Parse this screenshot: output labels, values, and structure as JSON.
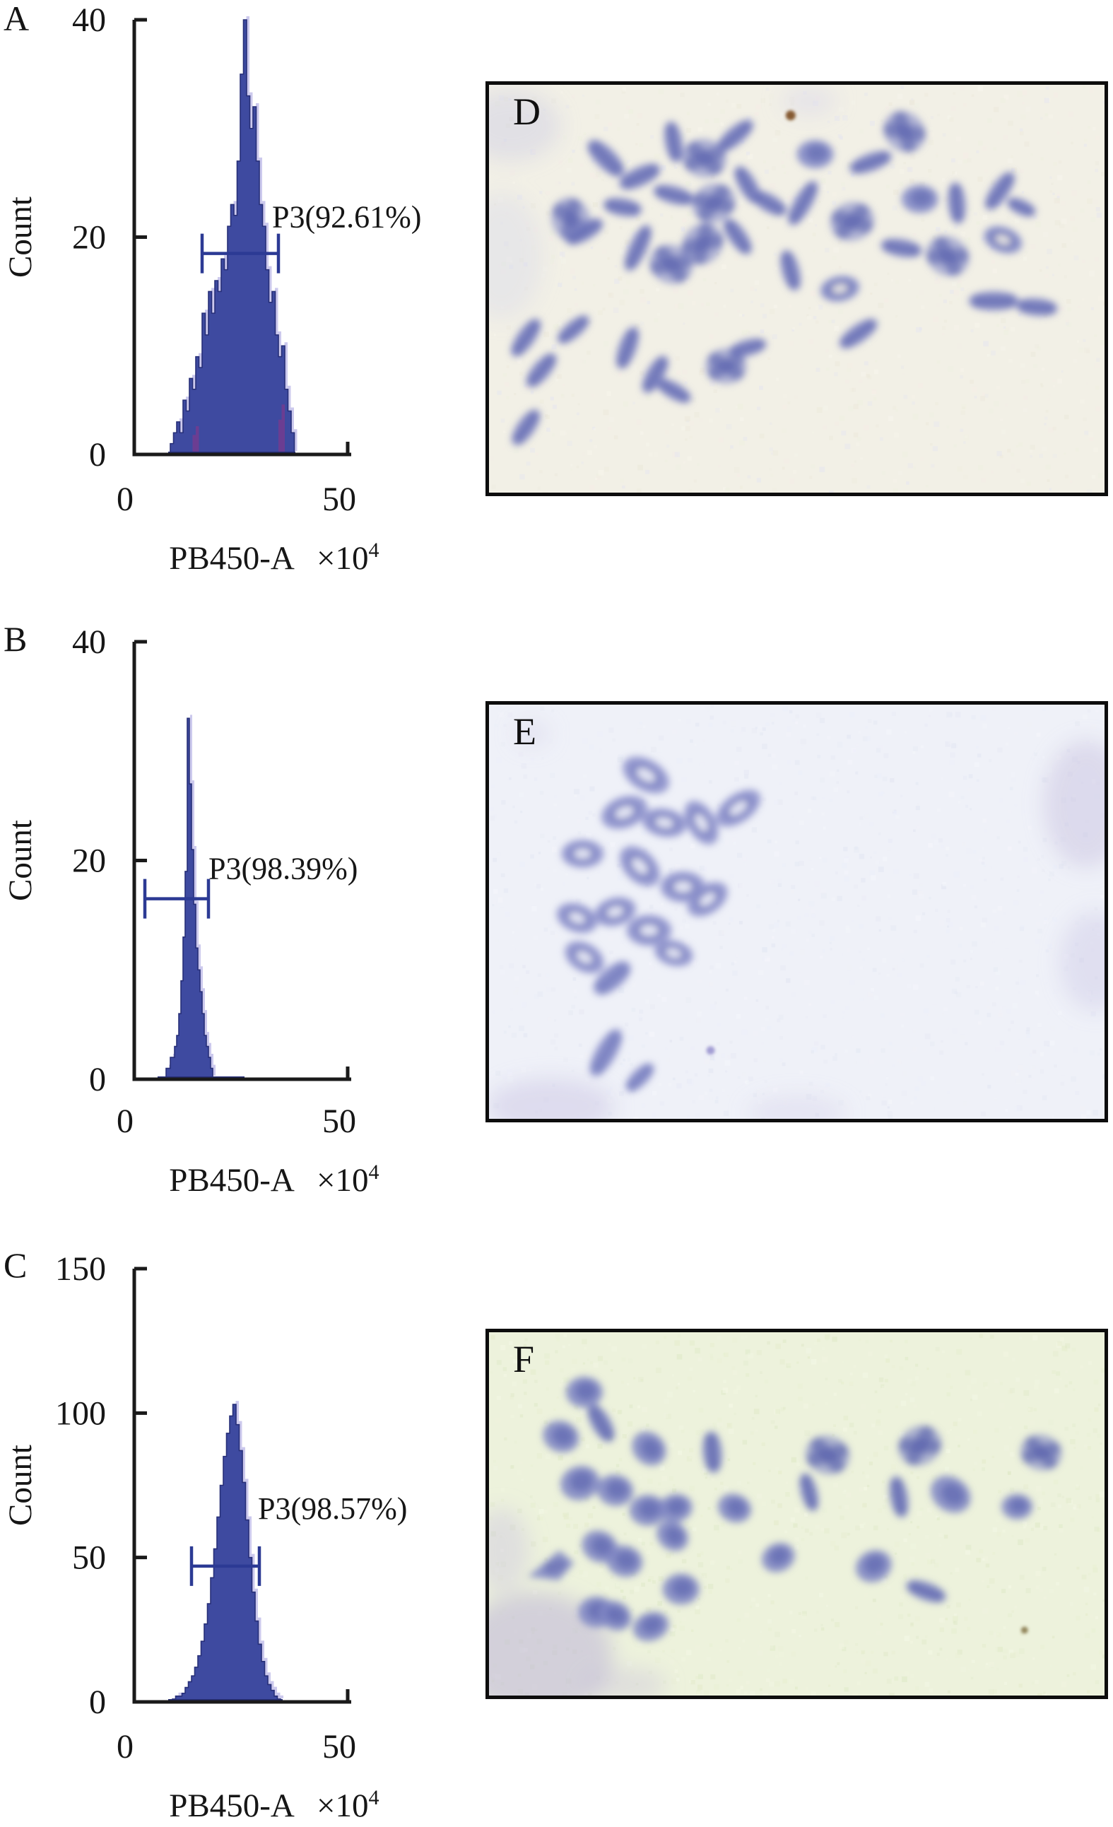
{
  "figure": {
    "background": "#ffffff"
  },
  "style": {
    "bar_fill": "#3e4aa0",
    "bar_edge": "#272f78",
    "halo": "#c9c6ec",
    "purple": "#6b3d92",
    "gate_color": "#2c3a94",
    "axis_color": "#1a1a1a",
    "text_color": "#161616"
  },
  "chart_data": [
    {
      "id": "A",
      "type": "bar",
      "panel_label": "A",
      "ylabel": "Count",
      "xlabel": "PB450-A",
      "xunit": "×10",
      "xunit_sup": "4",
      "ylim": [
        0,
        40
      ],
      "yticks": [
        40,
        20,
        0
      ],
      "xlim": [
        0,
        50
      ],
      "xticks": [
        0,
        50
      ],
      "grid": false,
      "bin_width": 0.75,
      "bins": [
        [
          8.5,
          1
        ],
        [
          9.25,
          2
        ],
        [
          10,
          3
        ],
        [
          10.75,
          2
        ],
        [
          11.5,
          5
        ],
        [
          12.25,
          4
        ],
        [
          13,
          7
        ],
        [
          13.75,
          6
        ],
        [
          14.5,
          9
        ],
        [
          15.25,
          8
        ],
        [
          16,
          13
        ],
        [
          16.75,
          11
        ],
        [
          17.5,
          15
        ],
        [
          18.25,
          13
        ],
        [
          19,
          16
        ],
        [
          19.75,
          15
        ],
        [
          20.5,
          18
        ],
        [
          21.25,
          17
        ],
        [
          22,
          21
        ],
        [
          22.75,
          23
        ],
        [
          23.5,
          22
        ],
        [
          24.25,
          27
        ],
        [
          25,
          35
        ],
        [
          25.75,
          40
        ],
        [
          26.5,
          33
        ],
        [
          27.25,
          30
        ],
        [
          28,
          32
        ],
        [
          28.75,
          27
        ],
        [
          29.5,
          23
        ],
        [
          30.25,
          21
        ],
        [
          31,
          17
        ],
        [
          31.75,
          14
        ],
        [
          32.5,
          15
        ],
        [
          33.25,
          11
        ],
        [
          34,
          9
        ],
        [
          34.75,
          10
        ],
        [
          35.5,
          6
        ],
        [
          36.25,
          4
        ],
        [
          37,
          2
        ]
      ],
      "purple_bins": [
        [
          13.75,
          1.8
        ],
        [
          14.5,
          2.6
        ],
        [
          34,
          3.2
        ],
        [
          34.75,
          4.6
        ]
      ],
      "baseline": [
        8,
        38
      ],
      "gate": {
        "label": "P3(92.61%)",
        "level": 18.5,
        "from": 16,
        "to": 34,
        "label_offset": [
          -9,
          -37
        ]
      }
    },
    {
      "id": "B",
      "type": "bar",
      "panel_label": "B",
      "ylabel": "Count",
      "xlabel": "PB450-A",
      "xunit": "×10",
      "xunit_sup": "4",
      "ylim": [
        0,
        40
      ],
      "yticks": [
        40,
        20,
        0
      ],
      "xlim": [
        0,
        50
      ],
      "xticks": [
        0,
        50
      ],
      "grid": false,
      "bin_width": 0.5,
      "bins": [
        [
          7.5,
          1
        ],
        [
          8,
          1
        ],
        [
          8.5,
          2
        ],
        [
          9,
          2
        ],
        [
          9.5,
          3
        ],
        [
          10,
          4
        ],
        [
          10.5,
          6
        ],
        [
          11,
          9
        ],
        [
          11.5,
          13
        ],
        [
          12,
          19
        ],
        [
          12.5,
          33
        ],
        [
          13,
          27
        ],
        [
          13.5,
          21
        ],
        [
          14,
          16
        ],
        [
          14.5,
          12
        ],
        [
          15,
          10
        ],
        [
          15.5,
          8
        ],
        [
          16,
          6
        ],
        [
          16.5,
          4
        ],
        [
          17,
          3
        ],
        [
          17.5,
          2
        ],
        [
          18,
          1
        ]
      ],
      "purple_bins": [],
      "baseline": [
        5.5,
        26
      ],
      "gate": {
        "label": "P3(98.39%)",
        "level": 16.5,
        "from": 2.5,
        "to": 17.5,
        "label_offset": [
          0,
          -28
        ]
      }
    },
    {
      "id": "C",
      "type": "bar",
      "panel_label": "C",
      "ylabel": "Count",
      "xlabel": "PB450-A",
      "xunit": "×10",
      "xunit_sup": "4",
      "ylim": [
        0,
        150
      ],
      "yticks": [
        150,
        100,
        50,
        0
      ],
      "xlim": [
        0,
        50
      ],
      "xticks": [
        0,
        50
      ],
      "grid": false,
      "bin_width": 0.75,
      "bins": [
        [
          9,
          1
        ],
        [
          9.75,
          2
        ],
        [
          10.5,
          2
        ],
        [
          11.25,
          3
        ],
        [
          12,
          5
        ],
        [
          12.75,
          7
        ],
        [
          13.5,
          9
        ],
        [
          14.25,
          12
        ],
        [
          15,
          16
        ],
        [
          15.75,
          21
        ],
        [
          16.5,
          27
        ],
        [
          17.25,
          34
        ],
        [
          18,
          43
        ],
        [
          18.75,
          53
        ],
        [
          19.5,
          64
        ],
        [
          20.25,
          75
        ],
        [
          21,
          85
        ],
        [
          21.75,
          93
        ],
        [
          22.5,
          99
        ],
        [
          23.25,
          103
        ],
        [
          24,
          96
        ],
        [
          24.75,
          87
        ],
        [
          25.5,
          76
        ],
        [
          26.25,
          63
        ],
        [
          27,
          50
        ],
        [
          27.75,
          38
        ],
        [
          28.5,
          28
        ],
        [
          29.25,
          20
        ],
        [
          30,
          14
        ],
        [
          30.75,
          9
        ],
        [
          31.5,
          6
        ],
        [
          32.25,
          4
        ],
        [
          33,
          2
        ],
        [
          33.75,
          1
        ]
      ],
      "purple_bins": [],
      "baseline": [
        8,
        35
      ],
      "gate": {
        "label": "P3(98.57%)",
        "level": 47,
        "from": 13.5,
        "to": 29.5,
        "label_offset": [
          -2,
          -67
        ]
      }
    }
  ],
  "images": {
    "D": {
      "label": "D",
      "bg": "#f2f0e6",
      "noise": [
        "#ece9db",
        "#f7f5ec",
        "#e6e6ef",
        "#eef0e0",
        "#f5ece6"
      ],
      "chromo_outer": "#8289c6",
      "chromo_inner": "#5a63ae",
      "smudges": [
        [
          0.035,
          0.1,
          70,
          50,
          "#c7c9e4",
          0.4
        ],
        [
          0.02,
          0.42,
          60,
          90,
          "#d4d6ea",
          0.35
        ],
        [
          0.52,
          0.04,
          40,
          22,
          "#d8d4ec",
          0.4
        ]
      ],
      "specks": [
        [
          0.49,
          0.075,
          7,
          "#7a4a20"
        ]
      ],
      "blobs": [
        [
          0.19,
          0.18,
          34,
          15,
          45,
          "rod"
        ],
        [
          0.245,
          0.225,
          32,
          14,
          -25,
          "rod"
        ],
        [
          0.3,
          0.14,
          30,
          13,
          80,
          "rod"
        ],
        [
          0.35,
          0.18,
          30,
          26,
          10,
          "x"
        ],
        [
          0.4,
          0.125,
          32,
          13,
          -40,
          "rod"
        ],
        [
          0.3,
          0.27,
          30,
          13,
          15,
          "rod"
        ],
        [
          0.365,
          0.29,
          30,
          26,
          -20,
          "x"
        ],
        [
          0.42,
          0.245,
          30,
          13,
          60,
          "rod"
        ],
        [
          0.455,
          0.29,
          28,
          13,
          30,
          "rod"
        ],
        [
          0.53,
          0.17,
          26,
          20,
          0,
          "blob"
        ],
        [
          0.62,
          0.19,
          32,
          13,
          -20,
          "rod"
        ],
        [
          0.675,
          0.115,
          30,
          26,
          40,
          "x"
        ],
        [
          0.7,
          0.28,
          26,
          20,
          0,
          "blob"
        ],
        [
          0.76,
          0.29,
          30,
          13,
          85,
          "rod"
        ],
        [
          0.83,
          0.26,
          32,
          13,
          -55,
          "rod"
        ],
        [
          0.865,
          0.3,
          22,
          11,
          25,
          "rod"
        ],
        [
          0.51,
          0.29,
          36,
          13,
          -60,
          "rod"
        ],
        [
          0.59,
          0.335,
          30,
          26,
          -15,
          "x"
        ],
        [
          0.67,
          0.4,
          30,
          13,
          10,
          "rod"
        ],
        [
          0.745,
          0.42,
          30,
          26,
          30,
          "x"
        ],
        [
          0.835,
          0.38,
          28,
          18,
          20,
          "ring"
        ],
        [
          0.49,
          0.455,
          30,
          13,
          75,
          "rod"
        ],
        [
          0.57,
          0.5,
          28,
          18,
          -10,
          "ring"
        ],
        [
          0.6,
          0.61,
          32,
          13,
          -35,
          "rod"
        ],
        [
          0.82,
          0.53,
          36,
          14,
          0,
          "rod"
        ],
        [
          0.89,
          0.545,
          30,
          13,
          5,
          "rod"
        ],
        [
          0.133,
          0.33,
          30,
          26,
          70,
          "x"
        ],
        [
          0.155,
          0.36,
          30,
          13,
          -30,
          "rod"
        ],
        [
          0.217,
          0.3,
          28,
          13,
          10,
          "rod"
        ],
        [
          0.242,
          0.4,
          36,
          13,
          -65,
          "rod"
        ],
        [
          0.296,
          0.44,
          30,
          26,
          20,
          "x"
        ],
        [
          0.347,
          0.39,
          30,
          26,
          -45,
          "x"
        ],
        [
          0.404,
          0.372,
          30,
          13,
          55,
          "rod"
        ],
        [
          0.06,
          0.62,
          32,
          13,
          -55,
          "rod"
        ],
        [
          0.085,
          0.7,
          30,
          13,
          -50,
          "rod"
        ],
        [
          0.06,
          0.84,
          30,
          13,
          -55,
          "rod"
        ],
        [
          0.137,
          0.6,
          28,
          12,
          -40,
          "rod"
        ],
        [
          0.225,
          0.645,
          32,
          13,
          -70,
          "rod"
        ],
        [
          0.27,
          0.71,
          30,
          13,
          -60,
          "rod"
        ],
        [
          0.3,
          0.75,
          28,
          12,
          30,
          "rod"
        ],
        [
          0.385,
          0.69,
          28,
          24,
          0,
          "x"
        ],
        [
          0.42,
          0.645,
          28,
          12,
          -15,
          "rod"
        ]
      ]
    },
    "E": {
      "label": "E",
      "bg": "#eff1f8",
      "noise": [
        "#e7eaf4",
        "#f5f6fb",
        "#e2e6f2",
        "#eceffa",
        "#f0f1f7"
      ],
      "chromo_outer": "#8d92cc",
      "chromo_inner": "#6a71b8",
      "smudges": [
        [
          0.97,
          0.24,
          60,
          90,
          "#c9c4e2",
          0.5
        ],
        [
          0.985,
          0.62,
          50,
          70,
          "#cfcae6",
          0.45
        ],
        [
          0.1,
          0.97,
          90,
          40,
          "#cdc8e5",
          0.5
        ],
        [
          0.5,
          0.985,
          70,
          25,
          "#d6d2ea",
          0.4
        ],
        [
          0.07,
          0.07,
          25,
          18,
          "#d8d4ec",
          0.45
        ]
      ],
      "specks": [
        [
          0.36,
          0.835,
          6,
          "#9a93cf"
        ]
      ],
      "blobs": [
        [
          0.255,
          0.17,
          36,
          22,
          30,
          "ring"
        ],
        [
          0.22,
          0.26,
          34,
          22,
          -20,
          "ring"
        ],
        [
          0.285,
          0.285,
          32,
          20,
          10,
          "ring"
        ],
        [
          0.345,
          0.285,
          34,
          20,
          60,
          "ring"
        ],
        [
          0.405,
          0.25,
          36,
          20,
          -35,
          "ring"
        ],
        [
          0.152,
          0.36,
          30,
          20,
          0,
          "ring"
        ],
        [
          0.245,
          0.39,
          34,
          22,
          45,
          "ring"
        ],
        [
          0.315,
          0.44,
          32,
          22,
          0,
          "ring"
        ],
        [
          0.355,
          0.47,
          32,
          20,
          -35,
          "ring"
        ],
        [
          0.143,
          0.515,
          30,
          20,
          20,
          "ring"
        ],
        [
          0.205,
          0.5,
          30,
          20,
          -15,
          "ring"
        ],
        [
          0.26,
          0.545,
          32,
          22,
          0,
          "ring"
        ],
        [
          0.155,
          0.61,
          30,
          20,
          30,
          "ring"
        ],
        [
          0.2,
          0.66,
          32,
          16,
          -40,
          "rod"
        ],
        [
          0.3,
          0.6,
          28,
          18,
          15,
          "ring"
        ],
        [
          0.19,
          0.84,
          38,
          15,
          -60,
          "rod"
        ],
        [
          0.245,
          0.9,
          26,
          12,
          -45,
          "rod"
        ]
      ]
    },
    "F": {
      "label": "F",
      "bg": "#edf2dc",
      "noise": [
        "#e4eccb",
        "#f4f8e6",
        "#dfe9c8",
        "#f0f4e0",
        "#e9f0d4"
      ],
      "chromo_outer": "#7f86c4",
      "chromo_inner": "#575fab",
      "smudges": [
        [
          0.075,
          0.89,
          110,
          90,
          "#b9b0d8",
          0.5
        ],
        [
          0.02,
          0.6,
          40,
          60,
          "#cac2e0",
          0.4
        ],
        [
          0.22,
          0.97,
          60,
          25,
          "#c5bcde",
          0.35
        ]
      ],
      "specks": [
        [
          0.87,
          0.82,
          5,
          "#8a7b50"
        ]
      ],
      "blobs": [
        [
          0.155,
          0.165,
          26,
          22,
          0,
          "blob"
        ],
        [
          0.182,
          0.25,
          30,
          14,
          60,
          "rod"
        ],
        [
          0.117,
          0.287,
          26,
          22,
          20,
          "blob"
        ],
        [
          0.148,
          0.415,
          28,
          24,
          -15,
          "blob"
        ],
        [
          0.205,
          0.435,
          26,
          22,
          10,
          "blob"
        ],
        [
          0.26,
          0.32,
          26,
          22,
          45,
          "blob"
        ],
        [
          0.258,
          0.49,
          26,
          22,
          0,
          "blob"
        ],
        [
          0.18,
          0.59,
          26,
          22,
          25,
          "blob"
        ],
        [
          0.1,
          0.65,
          34,
          20,
          -20,
          "wedge"
        ],
        [
          0.22,
          0.63,
          26,
          22,
          15,
          "blob"
        ],
        [
          0.175,
          0.77,
          26,
          22,
          0,
          "blob"
        ],
        [
          0.205,
          0.78,
          24,
          20,
          30,
          "blob"
        ],
        [
          0.263,
          0.81,
          26,
          20,
          -20,
          "blob"
        ],
        [
          0.298,
          0.56,
          24,
          20,
          40,
          "blob"
        ],
        [
          0.312,
          0.707,
          26,
          22,
          0,
          "blob"
        ],
        [
          0.363,
          0.33,
          30,
          14,
          85,
          "rod"
        ],
        [
          0.303,
          0.484,
          24,
          20,
          -10,
          "blob"
        ],
        [
          0.399,
          0.484,
          24,
          20,
          20,
          "blob"
        ],
        [
          0.55,
          0.338,
          30,
          26,
          15,
          "x"
        ],
        [
          0.7,
          0.312,
          30,
          26,
          -30,
          "x"
        ],
        [
          0.666,
          0.453,
          30,
          13,
          80,
          "rod"
        ],
        [
          0.75,
          0.446,
          30,
          24,
          35,
          "blob"
        ],
        [
          0.625,
          0.644,
          26,
          22,
          -25,
          "blob"
        ],
        [
          0.71,
          0.713,
          30,
          13,
          20,
          "rod"
        ],
        [
          0.897,
          0.331,
          28,
          24,
          15,
          "x"
        ],
        [
          0.858,
          0.48,
          22,
          18,
          0,
          "blob"
        ],
        [
          0.47,
          0.62,
          24,
          20,
          -25,
          "blob"
        ],
        [
          0.52,
          0.44,
          28,
          12,
          75,
          "rod"
        ]
      ]
    }
  }
}
